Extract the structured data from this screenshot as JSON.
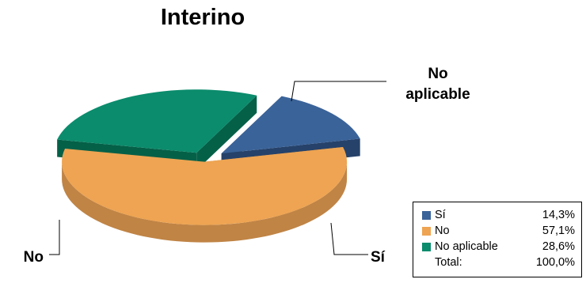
{
  "chart_data": {
    "type": "pie",
    "style": "3d-exploded",
    "title": "Interino",
    "slices": [
      {
        "label": "Sí",
        "chart_label": "Sí",
        "value": 14.3,
        "value_text": "14,3%",
        "color": "#3A6399",
        "side_color": "#26426A"
      },
      {
        "label": "No",
        "chart_label": "No",
        "value": 57.1,
        "value_text": "57,1%",
        "color": "#EEA452",
        "side_color": "#C08445"
      },
      {
        "label": "No aplicable",
        "chart_label": [
          "No",
          "aplicable"
        ],
        "value": 28.6,
        "value_text": "28,6%",
        "color": "#0B8C6C",
        "side_color": "#056048"
      }
    ],
    "legend": {
      "placement": "bottom-right",
      "total_label": "Total:",
      "total_value": "100,0%"
    }
  }
}
